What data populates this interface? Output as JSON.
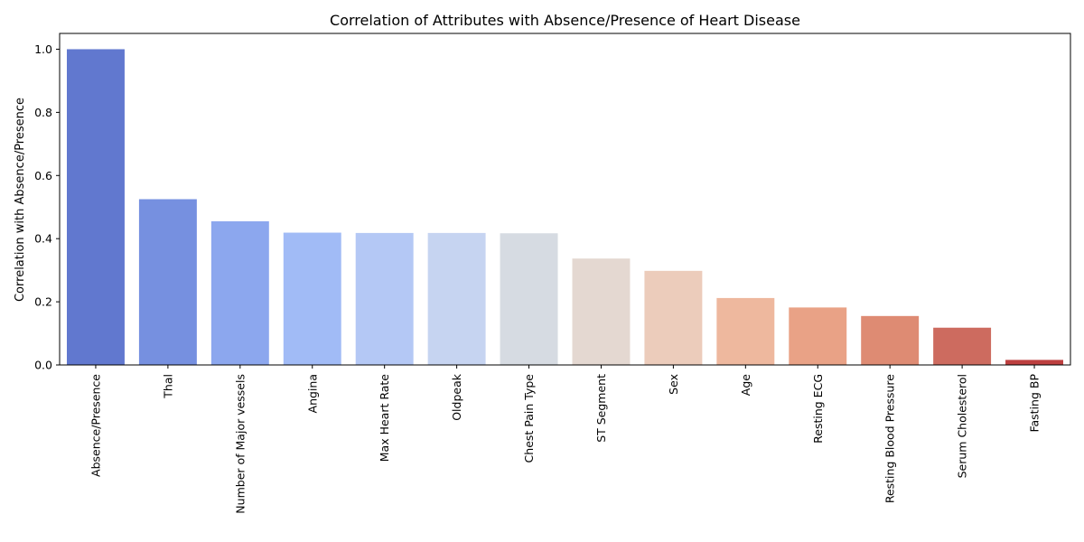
{
  "chart_data": {
    "type": "bar",
    "title": "Correlation of Attributes with Absence/Presence of Heart Disease",
    "xlabel": "",
    "ylabel": "Correlation with Absence/Presence",
    "ylim": [
      0,
      1.05
    ],
    "yticks": [
      "0.0",
      "0.2",
      "0.4",
      "0.6",
      "0.8",
      "1.0"
    ],
    "grid": false,
    "colormap": "coolwarm",
    "categories": [
      "Absence/Presence",
      "Thal",
      "Number of Major vessels",
      "Angina",
      "Max Heart Rate",
      "Oldpeak",
      "Chest Pain Type",
      "ST Segment",
      "Sex",
      "Age",
      "Resting ECG",
      "Resting Blood Pressure",
      "Serum Cholesterol",
      "Fasting BP"
    ],
    "values": [
      1.0,
      0.525,
      0.455,
      0.419,
      0.418,
      0.418,
      0.417,
      0.337,
      0.298,
      0.212,
      0.182,
      0.155,
      0.118,
      0.016
    ],
    "colors": [
      "#6178cf",
      "#7690e0",
      "#8ca7ee",
      "#a1bbf6",
      "#b4c8f5",
      "#c6d4f1",
      "#d6dbe2",
      "#e4d8d1",
      "#ecccbb",
      "#eeb89e",
      "#e9a286",
      "#de8b73",
      "#cd6b5f",
      "#bd3f3f"
    ]
  }
}
